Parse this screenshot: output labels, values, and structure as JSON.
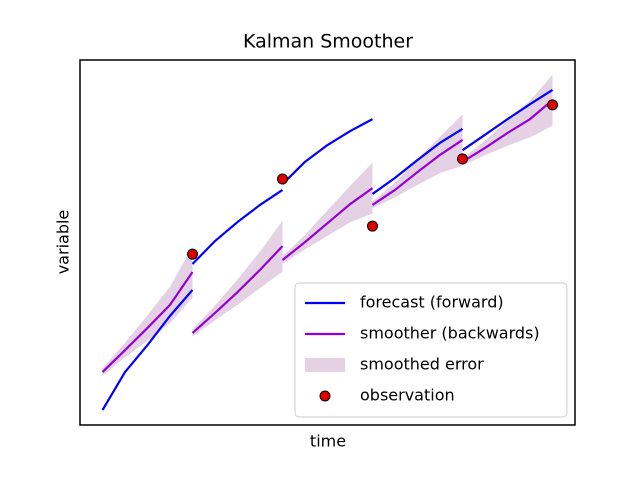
{
  "chart_data": {
    "type": "line",
    "title": "Kalman Smoother",
    "xlabel": "time",
    "ylabel": "variable",
    "xlim": [
      -0.25,
      5.25
    ],
    "ylim": [
      0,
      10
    ],
    "legend": "lower right",
    "series": [
      {
        "name": "forecast (forward)",
        "style": "line",
        "color": "#0000ff",
        "x": [
          0,
          0.25,
          0.5,
          0.75,
          1,
          null,
          1,
          1.25,
          1.5,
          1.75,
          2,
          null,
          2,
          2.25,
          2.5,
          2.75,
          3,
          null,
          3,
          3.25,
          3.5,
          3.75,
          4,
          null,
          4,
          4.25,
          4.5,
          4.75,
          5
        ],
        "values": [
          0.41,
          1.45,
          2.19,
          2.99,
          3.7,
          null,
          4.41,
          5.04,
          5.56,
          6.03,
          6.44,
          null,
          6.6,
          7.21,
          7.67,
          8.05,
          8.38,
          null,
          6.33,
          6.77,
          7.26,
          7.73,
          8.11,
          null,
          7.53,
          7.95,
          8.38,
          8.79,
          9.18
        ]
      },
      {
        "name": "smoother (backwards)",
        "style": "line",
        "color": "#9400d3",
        "x": [
          0,
          0.25,
          0.5,
          0.75,
          1,
          null,
          1,
          1.25,
          1.5,
          1.75,
          2,
          null,
          2,
          2.25,
          2.5,
          2.75,
          3,
          null,
          3,
          3.25,
          3.5,
          3.75,
          4,
          null,
          4,
          4.25,
          4.5,
          4.75,
          5
        ],
        "values": [
          1.45,
          2.05,
          2.66,
          3.29,
          4.19,
          null,
          2.52,
          3.07,
          3.64,
          4.25,
          4.9,
          null,
          4.52,
          5.01,
          5.53,
          6.05,
          6.49,
          null,
          6.03,
          6.44,
          6.93,
          7.4,
          7.81,
          null,
          7.21,
          7.59,
          8.0,
          8.38,
          8.9
        ]
      },
      {
        "name": "smoothed error",
        "style": "band",
        "color": "#d8bfd8",
        "x": [
          0,
          0.25,
          0.5,
          0.75,
          1,
          null,
          1,
          1.25,
          1.5,
          1.75,
          2,
          null,
          2,
          2.25,
          2.5,
          2.75,
          3,
          null,
          3,
          3.25,
          3.5,
          3.75,
          4,
          null,
          4,
          4.25,
          4.5,
          4.75,
          5
        ],
        "values": [
          0.1,
          0.2,
          0.35,
          0.5,
          0.7,
          null,
          0.1,
          0.2,
          0.35,
          0.5,
          0.7,
          null,
          0.1,
          0.2,
          0.35,
          0.5,
          0.7,
          null,
          0.1,
          0.2,
          0.35,
          0.5,
          0.7,
          null,
          0.1,
          0.2,
          0.35,
          0.5,
          0.7
        ]
      },
      {
        "name": "observation",
        "style": "points",
        "color": "#dd0000",
        "x": [
          1,
          2,
          3,
          4,
          5
        ],
        "values": [
          4.68,
          6.74,
          5.45,
          7.29,
          8.77
        ]
      }
    ]
  }
}
